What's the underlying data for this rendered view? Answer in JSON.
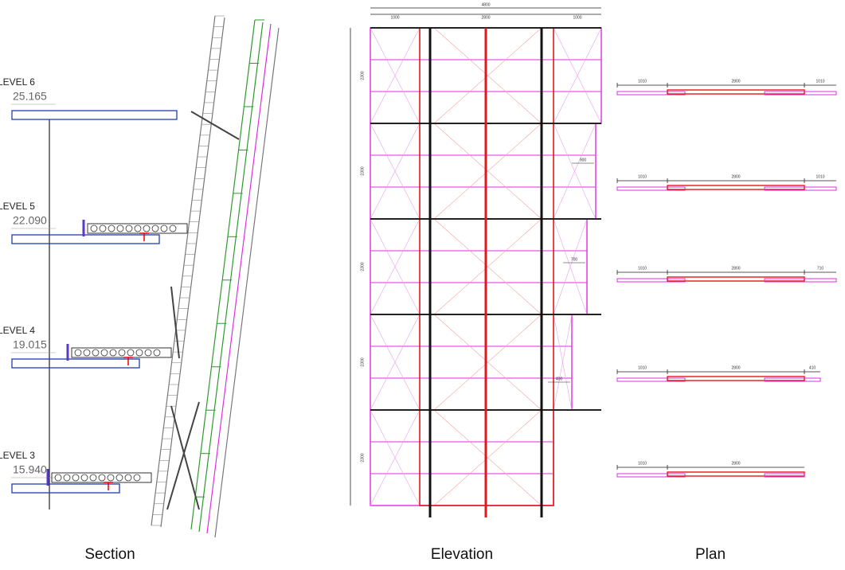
{
  "section": {
    "label": "Section",
    "levels": [
      {
        "name": "LEVEL 6",
        "elevation": "25.165"
      },
      {
        "name": "LEVEL 5",
        "elevation": "22.090"
      },
      {
        "name": "LEVEL 4",
        "elevation": "19.015"
      },
      {
        "name": "LEVEL 3",
        "elevation": "15.940"
      }
    ]
  },
  "elevation": {
    "label": "Elevation",
    "top_dims": [
      "4800",
      "1000",
      "2800",
      "1000"
    ],
    "bay_heights": [
      "2300",
      "2300",
      "2300",
      "2300",
      "2300"
    ],
    "offsets": [
      "900",
      "700",
      "400"
    ]
  },
  "plan": {
    "label": "Plan",
    "rows": [
      [
        "1010",
        "2800",
        "1010"
      ],
      [
        "1010",
        "2800",
        "1010"
      ],
      [
        "1010",
        "2800",
        "710"
      ],
      [
        "1010",
        "2800",
        "410"
      ],
      [
        "1010",
        "2800"
      ]
    ]
  }
}
